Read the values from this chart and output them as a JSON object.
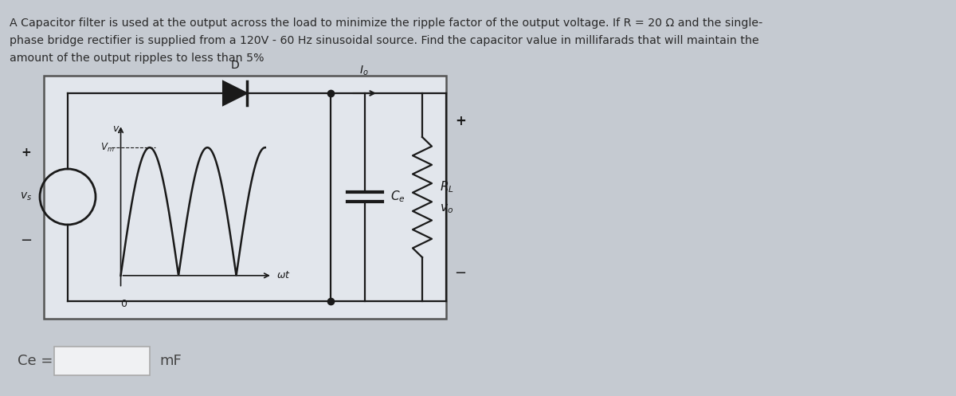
{
  "bg_color": "#c5cad1",
  "text_color": "#2a2a2a",
  "problem_text_line1": "A Capacitor filter is used at the output across the load to minimize the ripple factor of the output voltage. If R = 20 Ω and the single-",
  "problem_text_line2": "phase bridge rectifier is supplied from a 120V - 60 Hz sinusoidal source. Find the capacitor value in millifarads that will maintain the",
  "problem_text_line3": "amount of the output ripples to less than 5%",
  "circuit_box_bg": "#e2e6ec",
  "answer_label": "Ce =",
  "answer_unit": "mF",
  "input_box_bg": "#f0f1f3",
  "lc": "#1a1a1a"
}
